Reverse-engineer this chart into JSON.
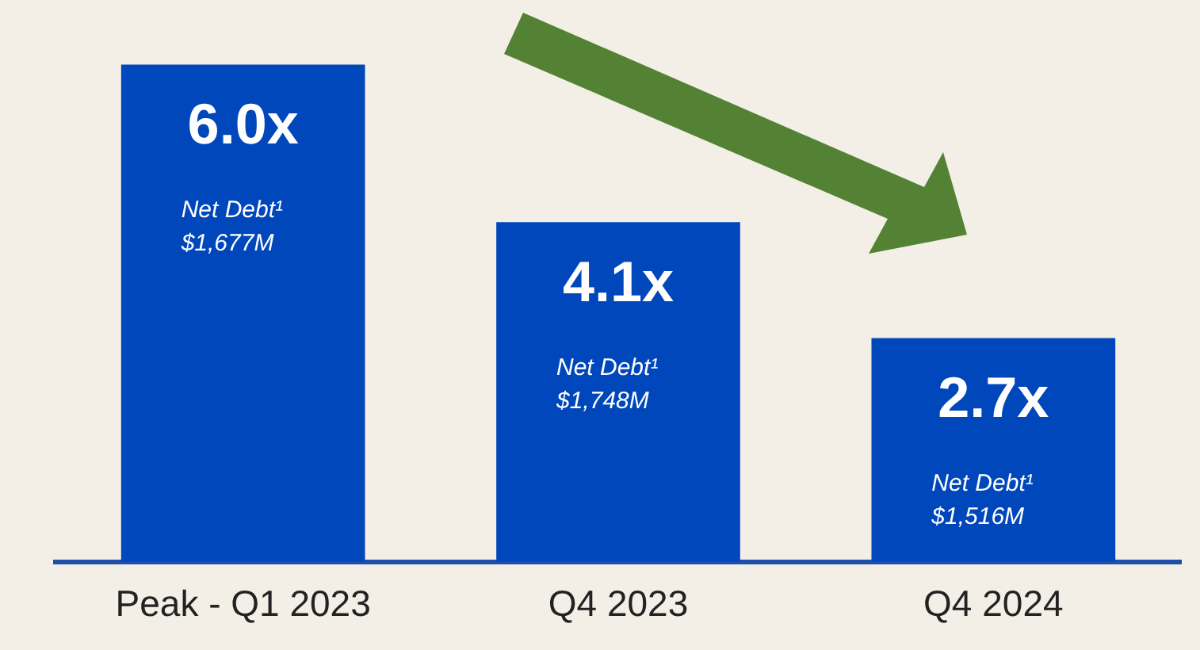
{
  "chart_data": {
    "type": "bar",
    "categories": [
      "Peak - Q1 2023",
      "Q4 2023",
      "Q4 2024"
    ],
    "values": [
      6.0,
      4.1,
      2.7
    ],
    "color": "#0047bb",
    "value_labels": [
      "6.0x",
      "4.1x",
      "2.7x"
    ],
    "annotations": [
      "Net Debt¹\n$1,677M",
      "Net Debt¹\n$1,748M",
      "Net Debt¹\n$1,516M"
    ],
    "grid": false,
    "legend": false
  }
}
